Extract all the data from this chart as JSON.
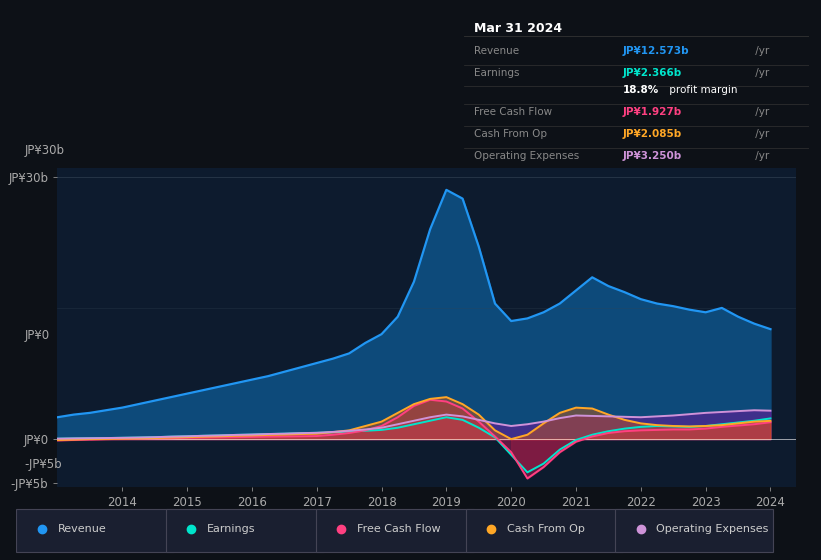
{
  "bg_color": "#0d1117",
  "chart_bg": "#0d1b2e",
  "title": "Mar 31 2024",
  "years": [
    2013.0,
    2013.25,
    2013.5,
    2013.75,
    2014.0,
    2014.25,
    2014.5,
    2014.75,
    2015.0,
    2015.25,
    2015.5,
    2015.75,
    2016.0,
    2016.25,
    2016.5,
    2016.75,
    2017.0,
    2017.25,
    2017.5,
    2017.75,
    2018.0,
    2018.25,
    2018.5,
    2018.75,
    2019.0,
    2019.25,
    2019.5,
    2019.75,
    2020.0,
    2020.25,
    2020.5,
    2020.75,
    2021.0,
    2021.25,
    2021.5,
    2021.75,
    2022.0,
    2022.25,
    2022.5,
    2022.75,
    2023.0,
    2023.25,
    2023.5,
    2023.75,
    2024.0
  ],
  "revenue": [
    2.5,
    2.8,
    3.0,
    3.3,
    3.6,
    4.0,
    4.4,
    4.8,
    5.2,
    5.6,
    6.0,
    6.4,
    6.8,
    7.2,
    7.7,
    8.2,
    8.7,
    9.2,
    9.8,
    11.0,
    12.0,
    14.0,
    18.0,
    24.0,
    28.5,
    27.5,
    22.0,
    15.5,
    13.5,
    13.8,
    14.5,
    15.5,
    17.0,
    18.5,
    17.5,
    16.8,
    16.0,
    15.5,
    15.2,
    14.8,
    14.5,
    15.0,
    14.0,
    13.2,
    12.573
  ],
  "earnings": [
    0.05,
    0.08,
    0.1,
    0.12,
    0.15,
    0.18,
    0.22,
    0.28,
    0.32,
    0.38,
    0.42,
    0.48,
    0.52,
    0.58,
    0.62,
    0.68,
    0.72,
    0.78,
    0.85,
    0.95,
    1.05,
    1.3,
    1.7,
    2.1,
    2.5,
    2.2,
    1.3,
    0.2,
    -1.8,
    -3.8,
    -2.8,
    -1.2,
    -0.1,
    0.5,
    0.9,
    1.2,
    1.4,
    1.5,
    1.45,
    1.4,
    1.5,
    1.7,
    1.9,
    2.1,
    2.366
  ],
  "free_cash_flow": [
    -0.15,
    -0.1,
    -0.05,
    0.0,
    0.02,
    0.05,
    0.08,
    0.1,
    0.15,
    0.18,
    0.2,
    0.22,
    0.25,
    0.28,
    0.3,
    0.32,
    0.35,
    0.5,
    0.7,
    1.0,
    1.5,
    2.5,
    3.8,
    4.5,
    4.3,
    3.5,
    2.0,
    0.3,
    -1.5,
    -4.5,
    -3.2,
    -1.5,
    -0.3,
    0.3,
    0.7,
    0.9,
    1.0,
    1.05,
    1.1,
    1.1,
    1.2,
    1.4,
    1.55,
    1.7,
    1.927
  ],
  "cash_from_op": [
    -0.1,
    -0.05,
    0.0,
    0.02,
    0.05,
    0.08,
    0.12,
    0.18,
    0.22,
    0.28,
    0.32,
    0.38,
    0.42,
    0.48,
    0.52,
    0.58,
    0.62,
    0.8,
    1.0,
    1.5,
    2.0,
    3.0,
    4.0,
    4.6,
    4.8,
    4.0,
    2.8,
    1.0,
    0.0,
    0.5,
    1.8,
    3.0,
    3.6,
    3.5,
    2.8,
    2.2,
    1.8,
    1.6,
    1.5,
    1.45,
    1.5,
    1.6,
    1.8,
    2.0,
    2.085
  ],
  "operating_expenses": [
    0.05,
    0.08,
    0.1,
    0.12,
    0.15,
    0.18,
    0.22,
    0.28,
    0.32,
    0.38,
    0.42,
    0.48,
    0.52,
    0.58,
    0.62,
    0.68,
    0.72,
    0.82,
    0.95,
    1.1,
    1.3,
    1.7,
    2.1,
    2.5,
    2.8,
    2.6,
    2.2,
    1.8,
    1.5,
    1.7,
    2.0,
    2.4,
    2.7,
    2.65,
    2.6,
    2.55,
    2.5,
    2.6,
    2.7,
    2.85,
    3.0,
    3.1,
    3.2,
    3.3,
    3.25
  ],
  "revenue_color": "#2196F3",
  "earnings_color": "#00E5CC",
  "fcf_color": "#FF4081",
  "cashop_color": "#FFA726",
  "opex_color": "#CE93D8",
  "ylim": [
    -5.5,
    31
  ],
  "xlim": [
    2013.0,
    2024.4
  ],
  "xticks": [
    2014,
    2015,
    2016,
    2017,
    2018,
    2019,
    2020,
    2021,
    2022,
    2023,
    2024
  ],
  "legend_items": [
    {
      "label": "Revenue",
      "color": "#2196F3"
    },
    {
      "label": "Earnings",
      "color": "#00E5CC"
    },
    {
      "label": "Free Cash Flow",
      "color": "#FF4081"
    },
    {
      "label": "Cash From Op",
      "color": "#FFA726"
    },
    {
      "label": "Operating Expenses",
      "color": "#CE93D8"
    }
  ],
  "table_rows": [
    {
      "label": "Revenue",
      "value": "JP¥12.573b",
      "value_color": "#2196F3"
    },
    {
      "label": "Earnings",
      "value": "JP¥2.366b",
      "value_color": "#00E5CC"
    },
    {
      "label": "",
      "value": "18.8% profit margin",
      "value_color": "#ffffff",
      "bold": "18.8%"
    },
    {
      "label": "Free Cash Flow",
      "value": "JP¥1.927b",
      "value_color": "#FF4081"
    },
    {
      "label": "Cash From Op",
      "value": "JP¥2.085b",
      "value_color": "#FFA726"
    },
    {
      "label": "Operating Expenses",
      "value": "JP¥3.250b",
      "value_color": "#CE93D8"
    }
  ]
}
